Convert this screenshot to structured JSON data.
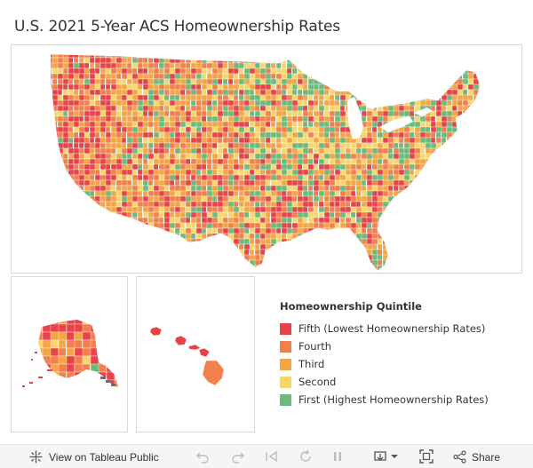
{
  "title": "U.S. 2021 5-Year ACS Homeownership Rates",
  "legend": {
    "title": "Homeownership Quintile",
    "items": [
      {
        "label": "Fifth (Lowest Homeownership Rates)",
        "color": "#e8434a"
      },
      {
        "label": "Fourth",
        "color": "#f27f4c"
      },
      {
        "label": "Third",
        "color": "#f5a543"
      },
      {
        "label": "Second",
        "color": "#f8d66a"
      },
      {
        "label": "First (Highest Homeownership Rates)",
        "color": "#6dbb7a"
      }
    ]
  },
  "toolbar": {
    "view_label": "View on Tableau Public",
    "share_label": "Share",
    "view_icon": "tableau-logo-icon",
    "undo_icon": "undo-icon",
    "redo_icon": "redo-icon",
    "revert_icon": "revert-icon",
    "refresh_icon": "refresh-icon",
    "pause_icon": "pause-icon",
    "download_icon": "download-icon",
    "fullscreen_icon": "fullscreen-icon",
    "share_icon": "share-icon"
  }
}
